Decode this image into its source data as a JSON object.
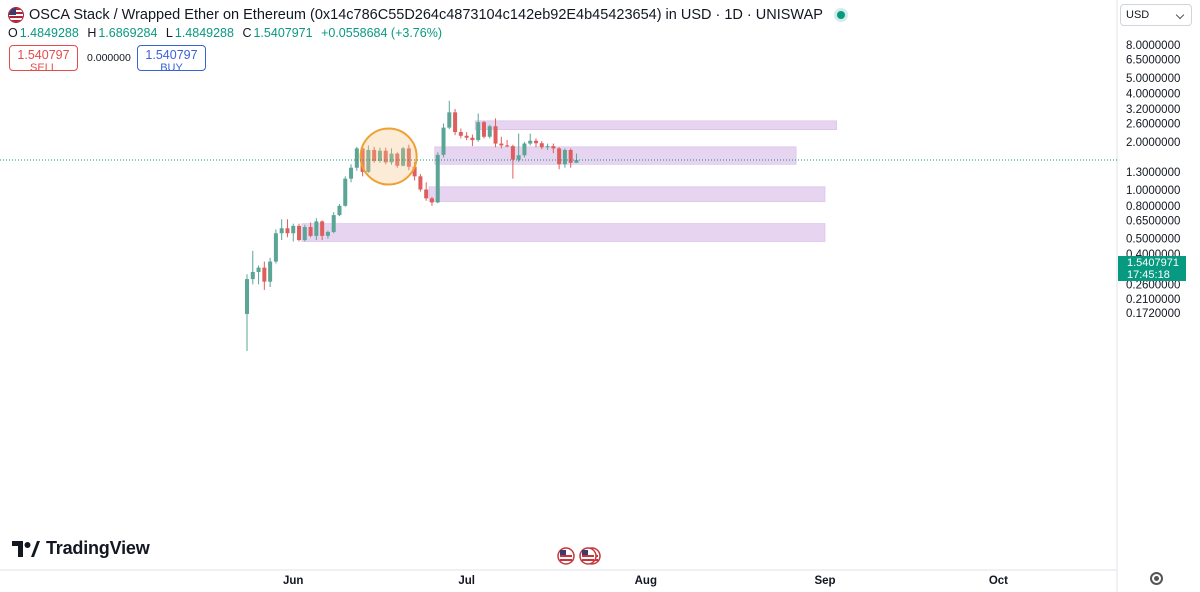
{
  "header": {
    "title": "OSCA Stack / Wrapped Ether on Ethereum (0x14c786C55D264c4873104c142eb92E4b45423654) in USD · 1D · UNISWAP"
  },
  "ohlc": {
    "o_label": "O",
    "o": "1.4849288",
    "h_label": "H",
    "h": "1.6869284",
    "l_label": "L",
    "l": "1.4849288",
    "c_label": "C",
    "c": "1.5407971",
    "change": "+0.0558684 (+3.76%)"
  },
  "trade": {
    "sell_price": "1.540797",
    "sell_label": "SELL",
    "spread": "0.000000",
    "buy_price": "1.540797",
    "buy_label": "BUY"
  },
  "currency": "USD",
  "price_tag": {
    "price": "1.5407971",
    "countdown": "17:45:18"
  },
  "brand": "TradingView",
  "colors": {
    "up": "#5aa596",
    "down": "#e05d5d",
    "zone": "#e2cdef",
    "last": "#089981"
  },
  "chart_data": {
    "type": "candlestick",
    "scale": "log",
    "ylim": [
      0.16,
      11.0
    ],
    "y_ticks": [
      {
        "value": 8.0,
        "label": "8.0000000"
      },
      {
        "value": 6.5,
        "label": "6.5000000"
      },
      {
        "value": 5.0,
        "label": "5.0000000"
      },
      {
        "value": 4.0,
        "label": "4.0000000"
      },
      {
        "value": 3.2,
        "label": "3.2000000"
      },
      {
        "value": 2.6,
        "label": "2.6000000"
      },
      {
        "value": 2.0,
        "label": "2.0000000"
      },
      {
        "value": 1.3,
        "label": "1.3000000"
      },
      {
        "value": 1.0,
        "label": "1.0000000"
      },
      {
        "value": 0.8,
        "label": "0.8000000"
      },
      {
        "value": 0.65,
        "label": "0.6500000"
      },
      {
        "value": 0.5,
        "label": "0.5000000"
      },
      {
        "value": 0.4,
        "label": "0.4000000"
      },
      {
        "value": 0.32,
        "label": "0.3200000"
      },
      {
        "value": 0.26,
        "label": "0.2600000"
      },
      {
        "value": 0.21,
        "label": "0.2100000"
      },
      {
        "value": 0.172,
        "label": "0.1720000"
      }
    ],
    "x_ticks": [
      "Jun",
      "Jul",
      "Aug",
      "Sep",
      "Oct"
    ],
    "last_price": 1.5407971,
    "candles": [
      [
        0.17,
        0.3,
        0.1,
        0.28
      ],
      [
        0.28,
        0.42,
        0.26,
        0.31
      ],
      [
        0.31,
        0.34,
        0.26,
        0.33
      ],
      [
        0.33,
        0.36,
        0.24,
        0.27
      ],
      [
        0.27,
        0.38,
        0.25,
        0.36
      ],
      [
        0.36,
        0.57,
        0.35,
        0.54
      ],
      [
        0.54,
        0.66,
        0.49,
        0.58
      ],
      [
        0.58,
        0.66,
        0.51,
        0.54
      ],
      [
        0.54,
        0.62,
        0.48,
        0.6
      ],
      [
        0.6,
        0.62,
        0.48,
        0.49
      ],
      [
        0.49,
        0.61,
        0.48,
        0.59
      ],
      [
        0.59,
        0.63,
        0.51,
        0.52
      ],
      [
        0.52,
        0.67,
        0.49,
        0.64
      ],
      [
        0.64,
        0.65,
        0.49,
        0.52
      ],
      [
        0.52,
        0.56,
        0.5,
        0.55
      ],
      [
        0.55,
        0.73,
        0.54,
        0.7
      ],
      [
        0.7,
        0.82,
        0.69,
        0.8
      ],
      [
        0.8,
        1.22,
        0.79,
        1.18
      ],
      [
        1.18,
        1.45,
        1.12,
        1.38
      ],
      [
        1.38,
        1.86,
        1.32,
        1.82
      ],
      [
        1.82,
        1.88,
        1.22,
        1.3
      ],
      [
        1.3,
        1.9,
        1.28,
        1.78
      ],
      [
        1.78,
        1.86,
        1.48,
        1.52
      ],
      [
        1.52,
        1.84,
        1.48,
        1.76
      ],
      [
        1.76,
        1.84,
        1.45,
        1.49
      ],
      [
        1.49,
        1.82,
        1.44,
        1.69
      ],
      [
        1.69,
        1.72,
        1.38,
        1.42
      ],
      [
        1.42,
        1.86,
        1.41,
        1.82
      ],
      [
        1.82,
        1.92,
        1.33,
        1.4
      ],
      [
        1.4,
        1.5,
        1.15,
        1.22
      ],
      [
        1.22,
        1.26,
        0.98,
        1.01
      ],
      [
        1.01,
        1.12,
        0.86,
        0.89
      ],
      [
        0.89,
        0.91,
        0.8,
        0.84
      ],
      [
        0.84,
        1.72,
        0.83,
        1.66
      ],
      [
        1.66,
        2.6,
        1.6,
        2.45
      ],
      [
        2.45,
        3.6,
        2.4,
        3.05
      ],
      [
        3.05,
        3.2,
        2.2,
        2.3
      ],
      [
        2.3,
        2.42,
        2.1,
        2.18
      ],
      [
        2.18,
        2.3,
        2.05,
        2.12
      ],
      [
        2.12,
        2.22,
        1.88,
        2.05
      ],
      [
        2.05,
        3.0,
        2.0,
        2.65
      ],
      [
        2.65,
        2.7,
        2.1,
        2.15
      ],
      [
        2.15,
        2.55,
        2.1,
        2.5
      ],
      [
        2.5,
        2.8,
        1.85,
        1.95
      ],
      [
        1.95,
        2.15,
        1.82,
        1.9
      ],
      [
        1.9,
        2.05,
        1.85,
        1.88
      ],
      [
        1.88,
        1.92,
        1.18,
        1.55
      ],
      [
        1.55,
        2.25,
        1.5,
        1.65
      ],
      [
        1.65,
        2.0,
        1.6,
        1.95
      ],
      [
        1.95,
        2.25,
        1.9,
        2.03
      ],
      [
        2.03,
        2.1,
        1.85,
        1.96
      ],
      [
        1.96,
        2.02,
        1.8,
        1.85
      ],
      [
        1.85,
        1.95,
        1.78,
        1.88
      ],
      [
        1.88,
        1.95,
        1.7,
        1.82
      ],
      [
        1.82,
        1.85,
        1.35,
        1.45
      ],
      [
        1.45,
        1.82,
        1.38,
        1.78
      ],
      [
        1.78,
        1.82,
        1.38,
        1.48
      ],
      [
        1.48,
        1.69,
        1.48,
        1.54
      ]
    ],
    "zones": [
      {
        "from_index": 40,
        "to_date": "Sep 3",
        "low": 2.38,
        "high": 2.7
      },
      {
        "from_index": 33,
        "to_date": "Aug 27",
        "low": 1.45,
        "high": 1.86
      },
      {
        "from_index": 32,
        "to_date": "Sep 1",
        "low": 0.85,
        "high": 1.05
      },
      {
        "from_index": 10,
        "to_date": "Sep 1",
        "low": 0.48,
        "high": 0.62
      }
    ],
    "highlight_circle": {
      "from_index": 21,
      "to_index": 28,
      "center_price": 1.62
    }
  }
}
